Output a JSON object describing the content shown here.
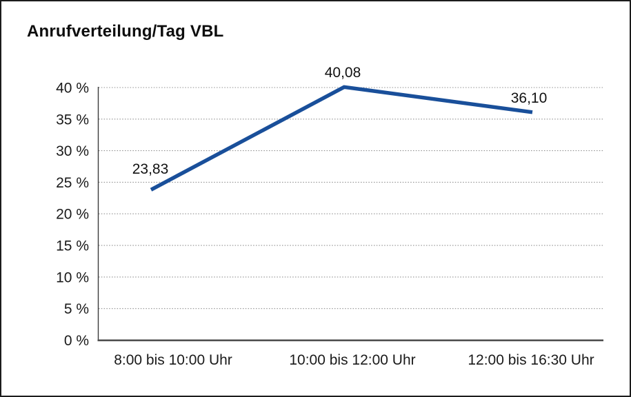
{
  "frame": {
    "background": "#ffffff",
    "border_color": "#1c1c1c"
  },
  "chart_data": {
    "type": "line",
    "title": "Anrufverteilung/Tag VBL",
    "categories": [
      "8:00 bis 10:00 Uhr",
      "10:00 bis 12:00 Uhr",
      "12:00 bis 16:30 Uhr"
    ],
    "values": [
      23.83,
      40.08,
      36.1
    ],
    "value_labels": [
      "23,83",
      "40,08",
      "36,10"
    ],
    "ytick_labels": [
      "0 %",
      "5 %",
      "10 %",
      "15 %",
      "20 %",
      "25 %",
      "30 %",
      "35 %",
      "40 %"
    ],
    "xlabel": "",
    "ylabel": "",
    "ylim": [
      0,
      40
    ],
    "ytick_step": 5,
    "grid": "horizontal dotted",
    "legend": "none",
    "line_color": "#194F9A",
    "grid_color": "#8f8f8f",
    "axis_color": "#3a3a3a",
    "baseline_color": "#4f4f4f",
    "text_color": "#1a1a1a",
    "layout": {
      "x_points": [
        217,
        497,
        770
      ],
      "y_base": 491.8,
      "y_top": 125,
      "vmax": 40
    }
  }
}
